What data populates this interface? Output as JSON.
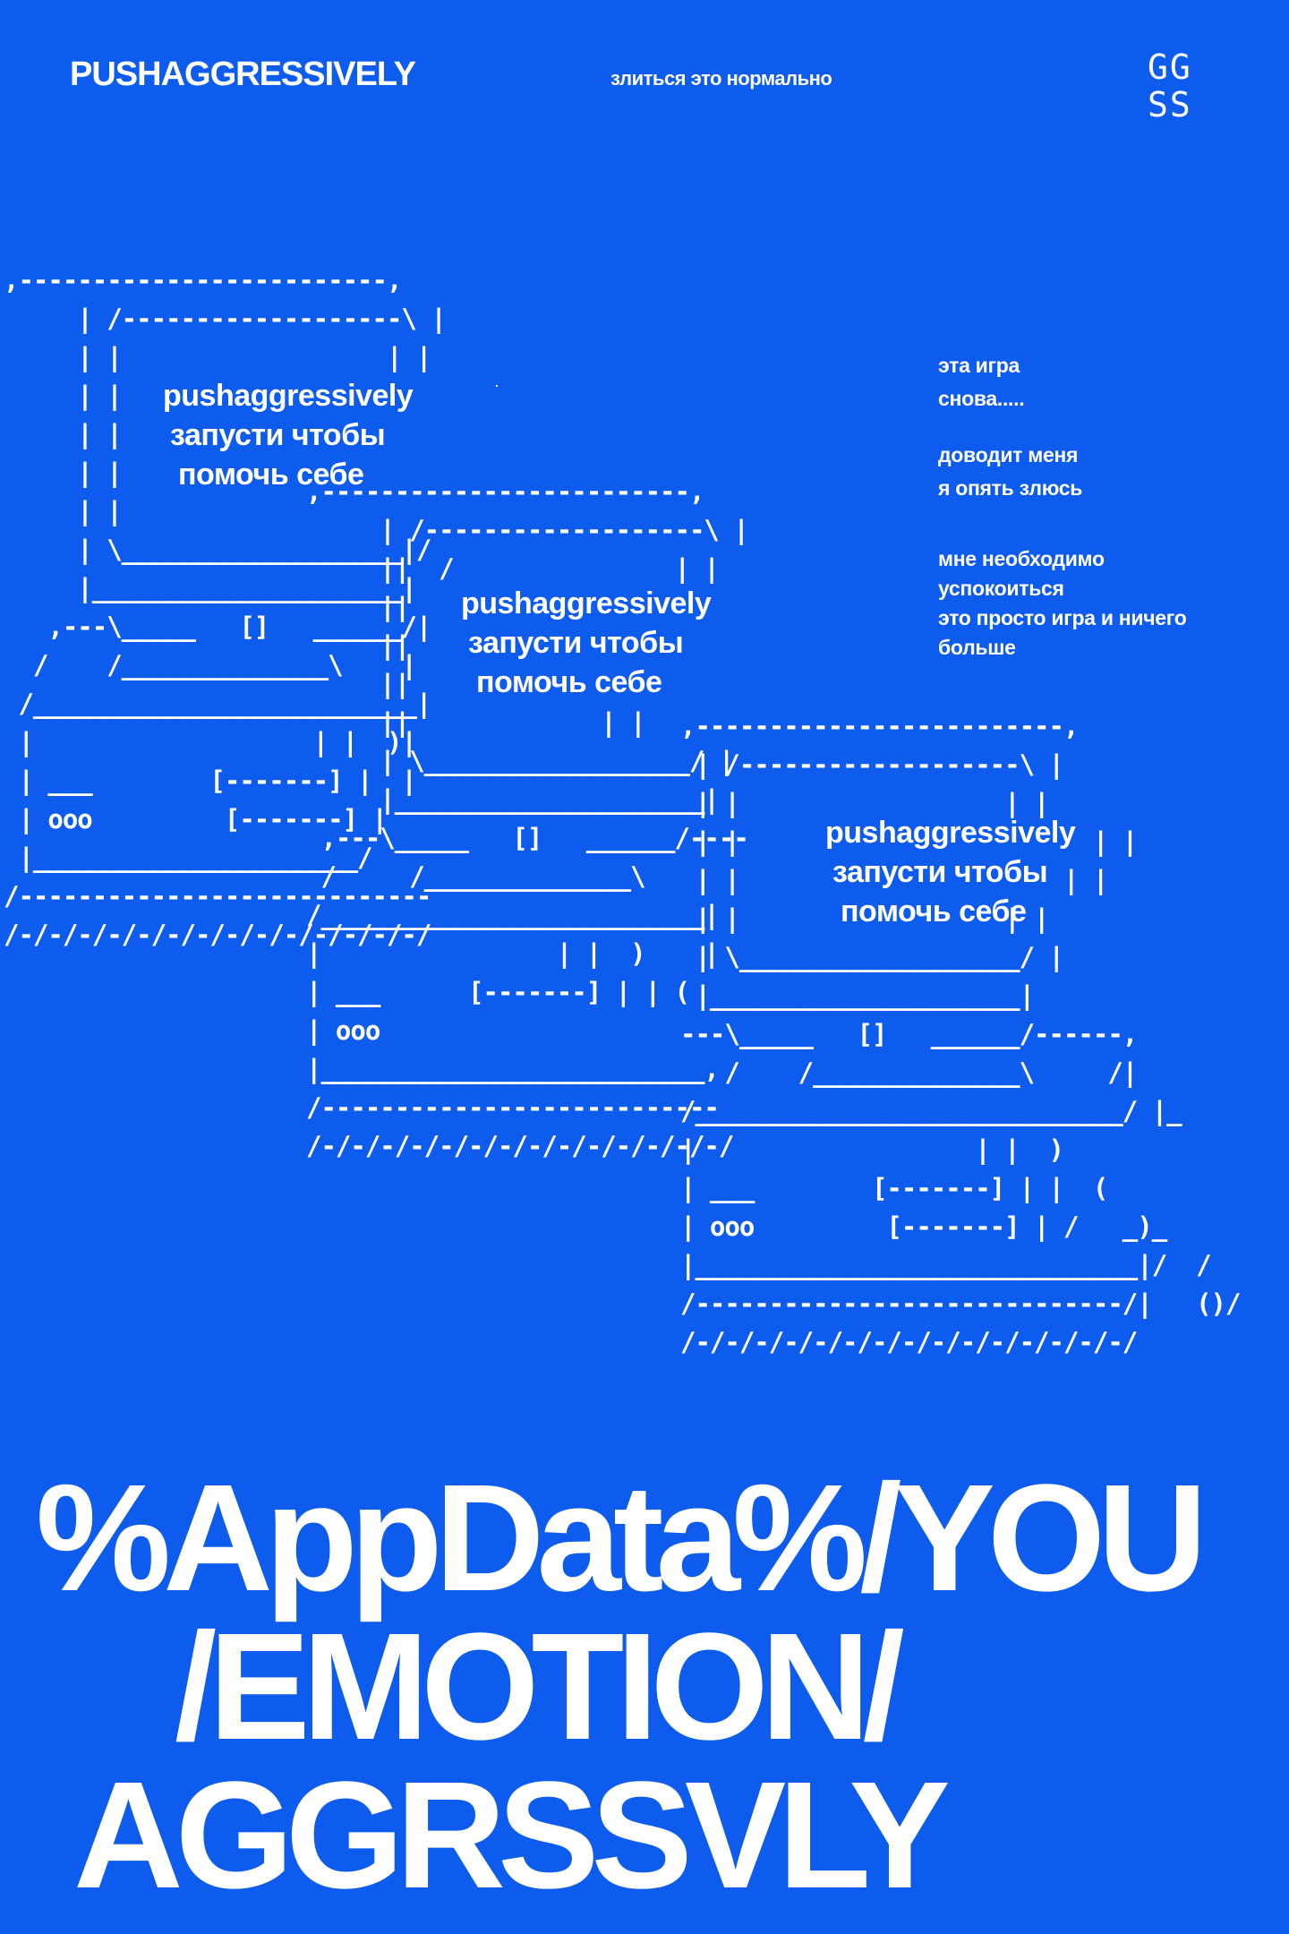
{
  "header": {
    "brand": "PUSHAGGRESSIVELY",
    "tagline": "злиться это нормально",
    "logo": "GG\nSS"
  },
  "side_notes": {
    "block1": [
      "эта игра",
      "снова....."
    ],
    "block2": [
      "доводит меня",
      "я опять злюсь"
    ],
    "block3": [
      "мне необходимо",
      "успокоиться",
      "это просто игра и ничего",
      "больше"
    ]
  },
  "screens": [
    {
      "line1": "pushaggressively",
      "line2": "запусти чтобы",
      "line3": "помочь себе"
    },
    {
      "line1": "pushaggressively",
      "line2": "запусти чтобы",
      "line3": "помочь себе"
    },
    {
      "line1": "pushaggressively",
      "line2": "запусти чтобы",
      "line3": "помочь себе"
    }
  ],
  "headline": {
    "line1": "%AppData%/YOU",
    "line2": "/EMOTION/",
    "line3": "AGGRSSVLY"
  },
  "colors": {
    "background": "#0e5ced",
    "foreground": "#ffffff"
  }
}
